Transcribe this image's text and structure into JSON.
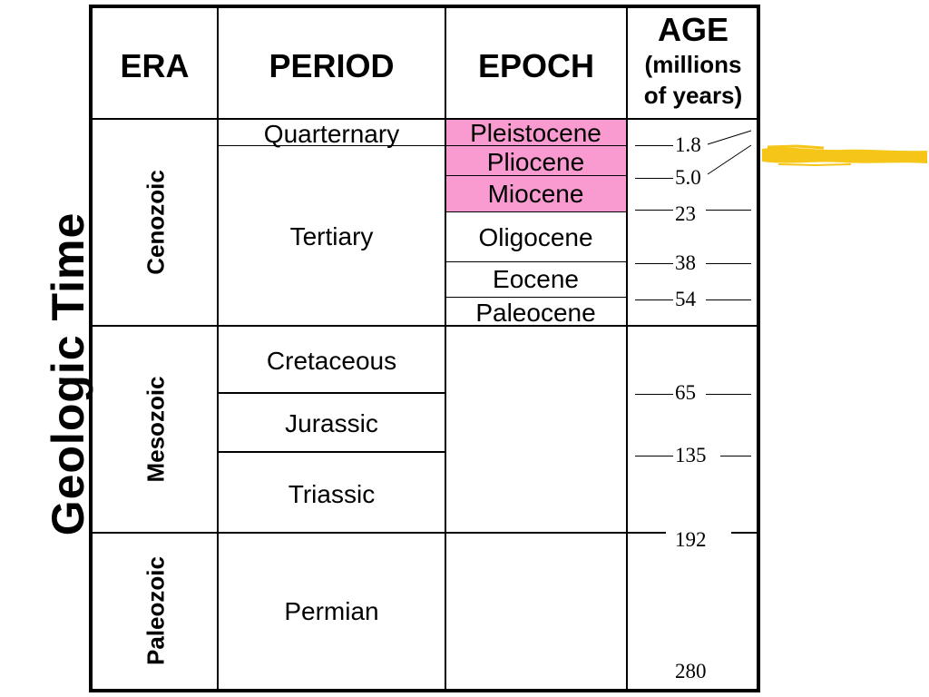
{
  "side_title": "Geologic Time",
  "headers": {
    "era": "ERA",
    "period": "PERIOD",
    "epoch": "EPOCH",
    "age_line1": "AGE",
    "age_line2": "(millions",
    "age_line3": "of years)"
  },
  "eras": {
    "cenozoic": "Cenozoic",
    "mesozoic": "Mesozoic",
    "paleozoic": "Paleozoic"
  },
  "periods": {
    "quarternary": "Quarternary",
    "tertiary": "Tertiary",
    "cretaceous": "Cretaceous",
    "jurassic": "Jurassic",
    "triassic": "Triassic",
    "permian": "Permian"
  },
  "epochs": {
    "pleistocene": "Pleistocene",
    "pliocene": "Pliocene",
    "miocene": "Miocene",
    "oligocene": "Oligocene",
    "eocene": "Eocene",
    "paleocene": "Paleocene"
  },
  "ages": {
    "a1": "1.8",
    "a2": "5.0",
    "a3": "23",
    "a4": "38",
    "a5": "54",
    "a6": "65",
    "a7": "135",
    "a8": "192",
    "a9": "280"
  },
  "colors": {
    "highlight": "#f99bd0",
    "brush": "#f5c518",
    "lines": "#000000"
  }
}
